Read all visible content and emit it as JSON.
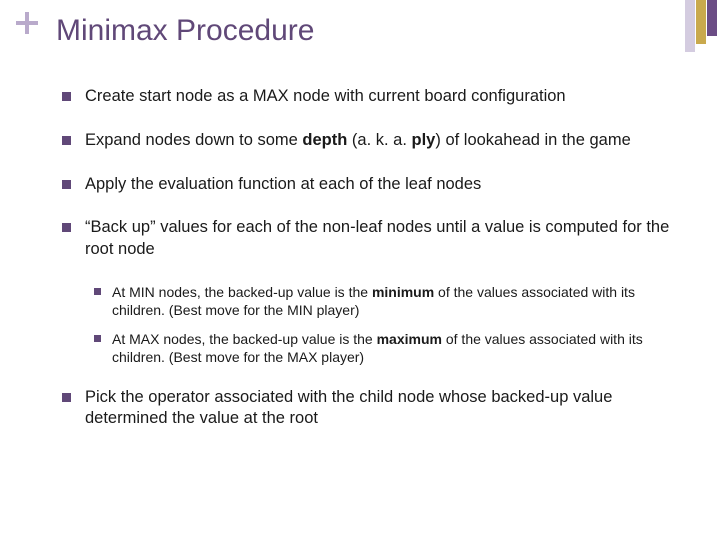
{
  "accent_color": "#604878",
  "title": "Minimax Procedure",
  "bullets": [
    {
      "text_html": "Create start node as a MAX node  with current board configuration"
    },
    {
      "text_html": "Expand nodes down to some <b>depth</b> (a. k. a. <b>ply</b>) of lookahead in the game"
    },
    {
      "text_html": "Apply the evaluation function at each of the leaf nodes"
    },
    {
      "text_html": "“Back up” values for each of the non-leaf nodes until a value is computed for the root node",
      "children": [
        {
          "text_html": "At MIN nodes, the backed-up value is the <b>minimum</b> of the values associated with its children.  (Best move for the MIN player)"
        },
        {
          "text_html": "At MAX nodes, the backed-up value is the <b>maximum</b> of the values associated with its children.  (Best move for the MAX player)"
        }
      ]
    },
    {
      "text_html": "Pick the operator associated with the child node whose backed-up value determined the value at the root"
    }
  ]
}
